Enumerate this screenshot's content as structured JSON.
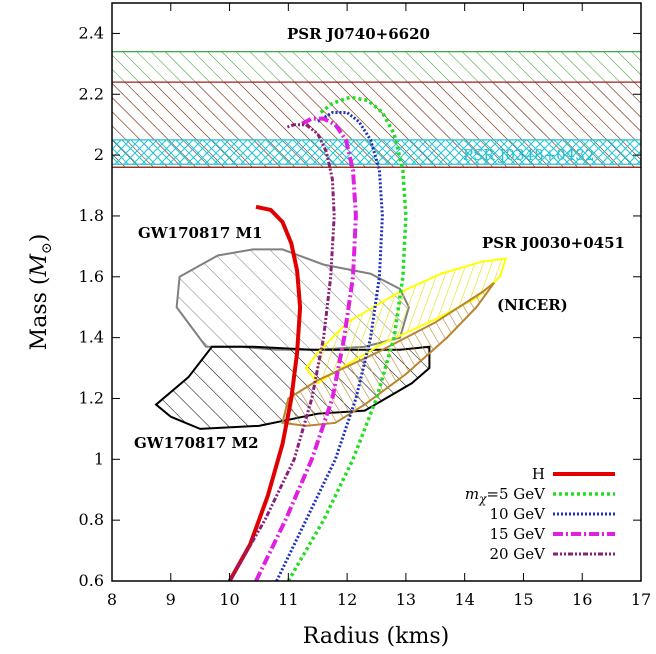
{
  "chart_data": {
    "type": "line",
    "xlabel": "Radius (kms)",
    "ylabel_main": "Mass (",
    "ylabel_sub": "⊙",
    "ylabel_unit": "M",
    "ylabel_close": ")",
    "xlim": [
      8,
      17
    ],
    "ylim": [
      0.6,
      2.5
    ],
    "x_ticks": [
      "8",
      "9",
      "10",
      "11",
      "12",
      "13",
      "14",
      "15",
      "16",
      "17"
    ],
    "y_ticks": [
      "0.6",
      "0.8",
      "1",
      "1.2",
      "1.4",
      "1.6",
      "1.8",
      "2",
      "2.2",
      "2.4"
    ],
    "bands": [
      {
        "name": "PSR J0740+6620",
        "ymin": 1.96,
        "ymax": 2.34,
        "color": "#2e9a2e",
        "hatch": "diag"
      },
      {
        "name": "PSR J0740+6620 inner",
        "ymin": 1.96,
        "ymax": 2.24,
        "color": "#a02020",
        "hatch": "diag"
      },
      {
        "name": "PSR J0348+0432",
        "ymin": 1.97,
        "ymax": 2.05,
        "color": "#22c4d4",
        "hatch": "cross"
      }
    ],
    "annotations": {
      "psr0740": "PSR J0740+6620",
      "psr0348": "PSR J0348+0432",
      "psr0030": "PSR J0030+0451",
      "nicer": "(NICER)",
      "gw_m1": "GW170817 M1",
      "gw_m2": "GW170817 M2"
    },
    "regions": [
      {
        "name": "GW170817 M1",
        "color": "#808080",
        "x": [
          9.6,
          9.1,
          9.15,
          9.8,
          10.4,
          10.9,
          11.6,
          12.4,
          12.9,
          13.05,
          12.9,
          12.3,
          11.5,
          10.8,
          10.2,
          9.6
        ],
        "y": [
          1.37,
          1.5,
          1.6,
          1.67,
          1.69,
          1.69,
          1.64,
          1.61,
          1.56,
          1.5,
          1.4,
          1.37,
          1.36,
          1.36,
          1.37,
          1.37
        ]
      },
      {
        "name": "GW170817 M2",
        "color": "#000000",
        "x": [
          8.75,
          9.3,
          9.7,
          10.4,
          11.4,
          12.2,
          12.9,
          13.4,
          13.4,
          13.1,
          12.3,
          11.5,
          10.5,
          9.5,
          9.0,
          8.75
        ],
        "y": [
          1.18,
          1.27,
          1.37,
          1.37,
          1.36,
          1.36,
          1.36,
          1.37,
          1.3,
          1.25,
          1.16,
          1.15,
          1.11,
          1.1,
          1.14,
          1.18
        ]
      },
      {
        "name": "PSR J0030+0451",
        "color": "#ffff00",
        "x": [
          11.5,
          12.0,
          12.8,
          13.6,
          14.3,
          14.7,
          14.6,
          14.2,
          13.5,
          12.6,
          11.9,
          11.5,
          11.3,
          11.5
        ],
        "y": [
          1.35,
          1.45,
          1.54,
          1.61,
          1.65,
          1.66,
          1.6,
          1.53,
          1.46,
          1.38,
          1.3,
          1.25,
          1.3,
          1.35
        ]
      },
      {
        "name": "NICER",
        "color": "#b8862e",
        "x": [
          11.0,
          11.5,
          12.5,
          13.5,
          14.3,
          14.5,
          14.2,
          13.7,
          13.0,
          12.3,
          11.8,
          11.3,
          10.9,
          11.0
        ],
        "y": [
          1.2,
          1.26,
          1.35,
          1.45,
          1.55,
          1.58,
          1.5,
          1.4,
          1.28,
          1.18,
          1.12,
          1.11,
          1.12,
          1.2
        ]
      }
    ],
    "series": [
      {
        "name": "H",
        "color": "#e00000",
        "width": 4,
        "dash": "",
        "x": [
          10.0,
          10.35,
          10.65,
          10.9,
          11.05,
          11.15,
          11.2,
          11.15,
          11.05,
          10.9,
          10.7,
          10.45
        ],
        "y": [
          0.6,
          0.72,
          0.88,
          1.05,
          1.2,
          1.35,
          1.5,
          1.62,
          1.71,
          1.78,
          1.82,
          1.83
        ]
      },
      {
        "name": "m_χ=5 GeV",
        "color": "#22dd22",
        "width": 3.5,
        "dash": "3,3",
        "x": [
          11.0,
          11.6,
          12.1,
          12.5,
          12.8,
          12.95,
          13.0,
          12.95,
          12.8,
          12.6,
          12.35,
          12.05,
          11.75,
          11.55
        ],
        "y": [
          0.6,
          0.8,
          1.0,
          1.2,
          1.4,
          1.6,
          1.8,
          1.95,
          2.07,
          2.14,
          2.18,
          2.19,
          2.17,
          2.14
        ]
      },
      {
        "name": "10 GeV",
        "color": "#1f2fbf",
        "width": 3,
        "dash": "2,2",
        "x": [
          10.8,
          11.3,
          11.8,
          12.15,
          12.4,
          12.55,
          12.6,
          12.55,
          12.4,
          12.2,
          12.0,
          11.75,
          11.5
        ],
        "y": [
          0.6,
          0.8,
          1.0,
          1.2,
          1.4,
          1.6,
          1.8,
          1.95,
          2.05,
          2.11,
          2.14,
          2.14,
          2.11
        ]
      },
      {
        "name": "15 GeV",
        "color": "#e020e0",
        "width": 4,
        "dash": "10,3,2,3",
        "x": [
          10.45,
          10.95,
          11.4,
          11.75,
          11.95,
          12.1,
          12.15,
          12.1,
          11.98,
          11.8,
          11.6,
          11.4,
          11.2
        ],
        "y": [
          0.6,
          0.8,
          1.0,
          1.2,
          1.4,
          1.6,
          1.8,
          1.95,
          2.05,
          2.1,
          2.12,
          2.12,
          2.1
        ]
      },
      {
        "name": "20 GeV",
        "color": "#8a1f7a",
        "width": 3,
        "dash": "5,2,2,2,2,2",
        "x": [
          10.0,
          10.6,
          11.1,
          11.4,
          11.6,
          11.72,
          11.78,
          11.75,
          11.65,
          11.5,
          11.3,
          11.1,
          10.95
        ],
        "y": [
          0.6,
          0.8,
          1.0,
          1.2,
          1.4,
          1.6,
          1.8,
          1.92,
          2.01,
          2.07,
          2.1,
          2.1,
          2.09
        ]
      }
    ],
    "legend": {
      "position": "bottom-right",
      "entries": [
        {
          "label_pre": "H",
          "label_sub": "",
          "label_post": "",
          "color": "#e00000",
          "width": 4,
          "dash": ""
        },
        {
          "label_pre": "m",
          "label_sub": "χ",
          "label_post": "=5 GeV",
          "color": "#22dd22",
          "width": 3.5,
          "dash": "3,3"
        },
        {
          "label_pre": "10 GeV",
          "label_sub": "",
          "label_post": "",
          "color": "#1f2fbf",
          "width": 3,
          "dash": "2,2"
        },
        {
          "label_pre": "15 GeV",
          "label_sub": "",
          "label_post": "",
          "color": "#e020e0",
          "width": 4,
          "dash": "10,3,2,3"
        },
        {
          "label_pre": "20 GeV",
          "label_sub": "",
          "label_post": "",
          "color": "#8a1f7a",
          "width": 3,
          "dash": "5,2,2,2,2,2"
        }
      ]
    }
  }
}
